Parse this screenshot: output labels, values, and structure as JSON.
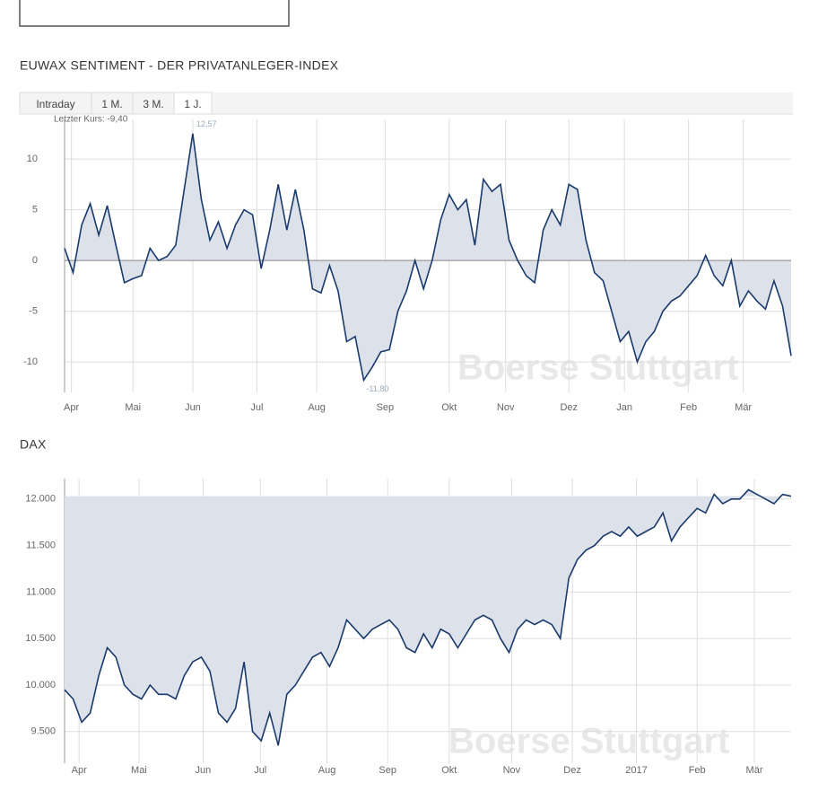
{
  "page": {
    "title": "EUWAX SENTIMENT - DER PRIVATANLEGER-INDEX",
    "tabs": [
      "Intraday",
      "1 M.",
      "3 M.",
      "1 J."
    ],
    "active_tab": 3,
    "section_title": "DAX"
  },
  "chart_data": [
    {
      "type": "line",
      "fill": "zero",
      "color": "#1a3a6b",
      "fill_color": "#dde2ea",
      "grid": true,
      "watermark": "Boerse Stuttgart",
      "annotations": {
        "last": "Letzter Kurs: -9,40",
        "max": "12,57",
        "min": "-11,80"
      },
      "values": [
        1.2,
        -1.2,
        3.5,
        5.6,
        2.5,
        5.4,
        1.5,
        -2.2,
        -1.8,
        -1.5,
        1.2,
        0,
        0.4,
        1.5,
        7,
        12.5,
        6,
        2,
        3.8,
        1.2,
        3.5,
        5,
        4.5,
        -0.8,
        3,
        7.5,
        3,
        7,
        3,
        -2.8,
        -3.2,
        -0.5,
        -3,
        -8,
        -7.5,
        -11.8,
        -10.5,
        -9,
        -8.8,
        -5,
        -3,
        0,
        -2.8,
        0,
        4,
        6.5,
        5,
        6,
        1.5,
        8,
        6.8,
        7.5,
        2,
        0,
        -1.5,
        -2.2,
        3,
        5,
        3.5,
        7.5,
        7,
        2,
        -1.2,
        -2,
        -5,
        -8,
        -7,
        -10,
        -8,
        -7,
        -5,
        -4,
        -3.5,
        -2.5,
        -1.5,
        0.5,
        -1.5,
        -2.5,
        0,
        -4.5,
        -3,
        -4,
        -4.8,
        -2,
        -4.5,
        -9.4
      ],
      "xlim": [
        0,
        85
      ],
      "xticks": [
        {
          "value": 0.8,
          "label": "Apr"
        },
        {
          "value": 8,
          "label": "Mai"
        },
        {
          "value": 15,
          "label": "Jun"
        },
        {
          "value": 22.5,
          "label": "Jul"
        },
        {
          "value": 29.5,
          "label": "Aug"
        },
        {
          "value": 37.5,
          "label": "Sep"
        },
        {
          "value": 45,
          "label": "Okt"
        },
        {
          "value": 51.6,
          "label": "Nov"
        },
        {
          "value": 59,
          "label": "Dez"
        },
        {
          "value": 65.5,
          "label": "Jan"
        },
        {
          "value": 73,
          "label": "Feb"
        },
        {
          "value": 79.4,
          "label": "Mär"
        }
      ],
      "ylim": [
        -13,
        13.9
      ],
      "yticks": [
        -10,
        -5,
        0,
        5,
        10
      ]
    },
    {
      "type": "line",
      "fill": "last",
      "color": "#1a3a6b",
      "fill_color": "#dde2ea",
      "grid": true,
      "watermark": "Boerse Stuttgart",
      "values": [
        9950,
        9850,
        9600,
        9700,
        10100,
        10400,
        10300,
        10000,
        9900,
        9850,
        10000,
        9900,
        9900,
        9850,
        10100,
        10250,
        10300,
        10150,
        9700,
        9600,
        9750,
        10250,
        9500,
        9400,
        9700,
        9350,
        9900,
        10000,
        10150,
        10300,
        10350,
        10200,
        10400,
        10700,
        10600,
        10500,
        10600,
        10650,
        10700,
        10600,
        10400,
        10350,
        10550,
        10400,
        10600,
        10550,
        10400,
        10550,
        10700,
        10750,
        10700,
        10500,
        10350,
        10600,
        10700,
        10650,
        10700,
        10650,
        10500,
        11150,
        11350,
        11450,
        11500,
        11600,
        11650,
        11600,
        11700,
        11600,
        11650,
        11700,
        11850,
        11550,
        11700,
        11800,
        11900,
        11850,
        12050,
        11950,
        12000,
        12000,
        12100,
        12050,
        12000,
        11950,
        12050,
        12030
      ],
      "xlim": [
        0,
        85
      ],
      "xticks": [
        {
          "value": 1.7,
          "label": "Apr"
        },
        {
          "value": 8.7,
          "label": "Mai"
        },
        {
          "value": 16.2,
          "label": "Jun"
        },
        {
          "value": 22.9,
          "label": "Jul"
        },
        {
          "value": 30.7,
          "label": "Aug"
        },
        {
          "value": 37.8,
          "label": "Sep"
        },
        {
          "value": 45,
          "label": "Okt"
        },
        {
          "value": 52.3,
          "label": "Nov"
        },
        {
          "value": 59.4,
          "label": "Dez"
        },
        {
          "value": 66.9,
          "label": "2017"
        },
        {
          "value": 74,
          "label": "Feb"
        },
        {
          "value": 80.7,
          "label": "Mär"
        }
      ],
      "ylim": [
        9160,
        12220
      ],
      "yticks": [
        {
          "value": 9500,
          "label": "9.500"
        },
        {
          "value": 10000,
          "label": "10.000"
        },
        {
          "value": 10500,
          "label": "10.500"
        },
        {
          "value": 11000,
          "label": "11.000"
        },
        {
          "value": 11500,
          "label": "11.500"
        },
        {
          "value": 12000,
          "label": "12.000"
        }
      ]
    }
  ]
}
